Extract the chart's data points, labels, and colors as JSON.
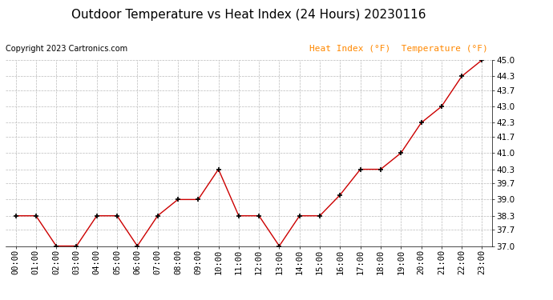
{
  "title": "Outdoor Temperature vs Heat Index (24 Hours) 20230116",
  "copyright": "Copyright 2023 Cartronics.com",
  "legend_heat_index": "Heat Index (°F)",
  "legend_temperature": "Temperature (°F)",
  "hours": [
    "00:00",
    "01:00",
    "02:00",
    "03:00",
    "04:00",
    "05:00",
    "06:00",
    "07:00",
    "08:00",
    "09:00",
    "10:00",
    "11:00",
    "12:00",
    "13:00",
    "14:00",
    "15:00",
    "16:00",
    "17:00",
    "18:00",
    "19:00",
    "20:00",
    "21:00",
    "22:00",
    "23:00"
  ],
  "temperature": [
    38.3,
    38.3,
    37.0,
    37.0,
    38.3,
    38.3,
    37.0,
    38.3,
    39.0,
    39.0,
    40.3,
    38.3,
    38.3,
    37.0,
    38.3,
    38.3,
    39.2,
    40.3,
    40.3,
    41.0,
    42.3,
    43.0,
    44.3,
    45.0
  ],
  "heat_index": [
    38.3,
    38.3,
    37.0,
    37.0,
    38.3,
    38.3,
    37.0,
    38.3,
    39.0,
    39.0,
    40.3,
    38.3,
    38.3,
    37.0,
    38.3,
    38.3,
    39.2,
    40.3,
    40.3,
    41.0,
    42.3,
    43.0,
    44.3,
    45.0
  ],
  "ylim_min": 37.0,
  "ylim_max": 45.0,
  "yticks": [
    37.0,
    37.7,
    38.3,
    39.0,
    39.7,
    40.3,
    41.0,
    41.7,
    42.3,
    43.0,
    43.7,
    44.3,
    45.0
  ],
  "line_color": "#cc0000",
  "marker_color": "#000000",
  "bg_color": "#ffffff",
  "grid_color": "#bbbbbb",
  "title_color": "#000000",
  "copyright_color": "#000000",
  "legend_color": "#ff8800",
  "title_fontsize": 11,
  "copyright_fontsize": 7,
  "legend_fontsize": 8,
  "tick_fontsize": 7.5
}
